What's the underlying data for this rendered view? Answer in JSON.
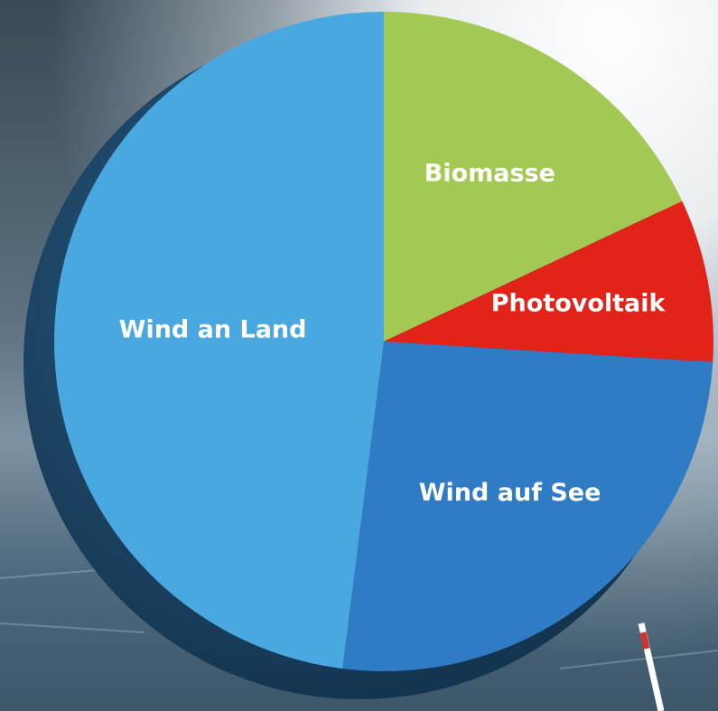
{
  "chart_data": {
    "type": "pie",
    "categories": [
      "Biomasse",
      "Photovoltaik",
      "Wind auf See",
      "Wind an Land"
    ],
    "values": [
      18,
      8,
      26,
      48
    ],
    "colors": [
      "#a3c853",
      "#e2231a",
      "#2f7cc4",
      "#4aa8e0"
    ]
  }
}
